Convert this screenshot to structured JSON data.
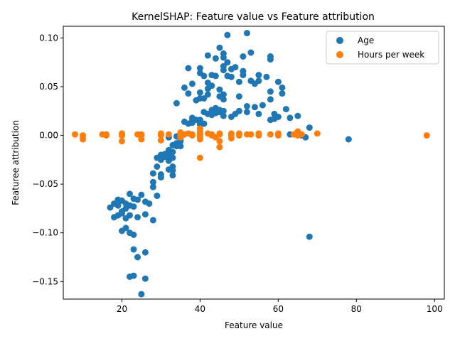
{
  "chart_data": {
    "type": "scatter",
    "title": "KernelSHAP: Feature value vs Feature attribution",
    "xlabel": "Feature value",
    "ylabel": "Featuree attribution",
    "xlim": [
      5,
      102.5
    ],
    "ylim": [
      -0.168,
      0.112
    ],
    "xticks": [
      20,
      40,
      60,
      80,
      100
    ],
    "yticks": [
      -0.15,
      -0.1,
      -0.05,
      0.0,
      0.05,
      0.1
    ],
    "ytick_labels": [
      "−0.15",
      "−0.10",
      "−0.05",
      "0.00",
      "0.05",
      "0.10"
    ],
    "grid": false,
    "legend_position": "top-right",
    "series": [
      {
        "name": "Age",
        "color": "#1f77b4",
        "points": [
          [
            17,
            -0.074
          ],
          [
            18,
            -0.07
          ],
          [
            18,
            -0.084
          ],
          [
            19,
            -0.072
          ],
          [
            19,
            -0.068
          ],
          [
            19,
            -0.082
          ],
          [
            19,
            -0.066
          ],
          [
            20,
            -0.078
          ],
          [
            20,
            -0.098
          ],
          [
            20,
            -0.067
          ],
          [
            20,
            -0.08
          ],
          [
            21,
            -0.075
          ],
          [
            21,
            -0.085
          ],
          [
            21,
            -0.095
          ],
          [
            21,
            -0.07
          ],
          [
            22,
            -0.06
          ],
          [
            22,
            -0.082
          ],
          [
            22,
            -0.1
          ],
          [
            22,
            -0.145
          ],
          [
            22,
            -0.072
          ],
          [
            23,
            -0.065
          ],
          [
            23,
            -0.102
          ],
          [
            23,
            -0.117
          ],
          [
            23,
            -0.144
          ],
          [
            23,
            -0.073
          ],
          [
            24,
            -0.125
          ],
          [
            24,
            -0.084
          ],
          [
            24,
            -0.066
          ],
          [
            25,
            -0.061
          ],
          [
            25,
            -0.163
          ],
          [
            26,
            -0.12
          ],
          [
            26,
            -0.081
          ],
          [
            26,
            -0.147
          ],
          [
            26,
            -0.068
          ],
          [
            27,
            -0.07
          ],
          [
            28,
            -0.087
          ],
          [
            28,
            -0.039
          ],
          [
            28,
            -0.048
          ],
          [
            28,
            -0.053
          ],
          [
            29,
            -0.032
          ],
          [
            29,
            -0.023
          ],
          [
            29,
            -0.062
          ],
          [
            30,
            -0.02
          ],
          [
            30,
            -0.025
          ],
          [
            30,
            -0.04
          ],
          [
            30,
            -0.043
          ],
          [
            31,
            -0.022
          ],
          [
            31,
            -0.019
          ],
          [
            32,
            -0.002
          ],
          [
            32,
            -0.015
          ],
          [
            32,
            -0.02
          ],
          [
            32,
            -0.035
          ],
          [
            32,
            -0.026
          ],
          [
            33,
            -0.01
          ],
          [
            33,
            -0.017
          ],
          [
            33,
            -0.023
          ],
          [
            33,
            -0.032
          ],
          [
            33,
            -0.036
          ],
          [
            33,
            -0.041
          ],
          [
            34,
            0.033
          ],
          [
            34,
            -0.001
          ],
          [
            34,
            -0.008
          ],
          [
            34,
            -0.011
          ],
          [
            35,
            -0.003
          ],
          [
            35,
            -0.006
          ],
          [
            35,
            -0.011
          ],
          [
            36,
            0.014
          ],
          [
            36,
            0.049
          ],
          [
            37,
            0.012
          ],
          [
            37,
            0.043
          ],
          [
            37,
            0.069
          ],
          [
            38,
            0.018
          ],
          [
            38,
            0.015
          ],
          [
            38,
            0.053
          ],
          [
            38,
            0.013
          ],
          [
            39,
            0.036
          ],
          [
            39,
            0.016
          ],
          [
            40,
            0.013
          ],
          [
            40,
            0.016
          ],
          [
            40,
            0.038
          ],
          [
            40,
            0.044
          ],
          [
            40,
            0.064
          ],
          [
            40,
            0.069
          ],
          [
            40,
            0.011
          ],
          [
            41,
            0.024
          ],
          [
            41,
            0.038
          ],
          [
            41,
            0.061
          ],
          [
            41,
            0.012
          ],
          [
            42,
            0.042
          ],
          [
            42,
            0.054
          ],
          [
            42,
            0.022
          ],
          [
            42,
            0.082
          ],
          [
            42,
            0.048
          ],
          [
            43,
            0.026
          ],
          [
            43,
            0.021
          ],
          [
            43,
            0.062
          ],
          [
            43,
            0.051
          ],
          [
            44,
            0.028
          ],
          [
            44,
            0.023
          ],
          [
            44,
            0.061
          ],
          [
            44,
            0.079
          ],
          [
            45,
            0.026
          ],
          [
            45,
            0.047
          ],
          [
            45,
            0.09
          ],
          [
            45,
            0.04
          ],
          [
            45,
            0.024
          ],
          [
            46,
            0.02
          ],
          [
            46,
            0.037
          ],
          [
            46,
            0.067
          ],
          [
            46,
            0.071
          ],
          [
            46,
            0.084
          ],
          [
            46,
            0.08
          ],
          [
            46,
            0.025
          ],
          [
            46,
            0.042
          ],
          [
            47,
            0.061
          ],
          [
            47,
            0.075
          ],
          [
            47,
            0.103
          ],
          [
            48,
            0.019
          ],
          [
            48,
            0.06
          ],
          [
            48,
            0.068
          ],
          [
            49,
            0.07
          ],
          [
            49,
            0.022
          ],
          [
            50,
            0.025
          ],
          [
            50,
            0.04
          ],
          [
            50,
            0.055
          ],
          [
            51,
            0.062
          ],
          [
            51,
            0.066
          ],
          [
            51,
            0.081
          ],
          [
            52,
            0.03
          ],
          [
            52,
            0.105
          ],
          [
            52,
            0.024
          ],
          [
            53,
            0.085
          ],
          [
            53,
            0.056
          ],
          [
            54,
            0.053
          ],
          [
            54,
            0.029
          ],
          [
            55,
            0.022
          ],
          [
            55,
            0.056
          ],
          [
            55,
            0.062
          ],
          [
            56,
            0.031
          ],
          [
            57,
            0.06
          ],
          [
            58,
            0.016
          ],
          [
            58,
            0.037
          ],
          [
            58,
            0.045
          ],
          [
            58,
            0.078
          ],
          [
            58,
            0.081
          ],
          [
            59,
            0.022
          ],
          [
            59,
            0.017
          ],
          [
            60,
            0.019
          ],
          [
            60,
            0.055
          ],
          [
            61,
            0.049
          ],
          [
            61,
            0.043
          ],
          [
            62,
            0.027
          ],
          [
            63,
            0.001
          ],
          [
            63,
            0.018
          ],
          [
            65,
            0.02
          ],
          [
            66,
            0.0
          ],
          [
            67,
            -0.002
          ],
          [
            68,
            0.008
          ],
          [
            68,
            -0.104
          ],
          [
            78,
            -0.004
          ]
        ]
      },
      {
        "name": "Hours per week",
        "color": "#ff7f0e",
        "points": [
          [
            8,
            0.001
          ],
          [
            10,
            -0.001
          ],
          [
            10,
            0.0
          ],
          [
            10,
            -0.004
          ],
          [
            15,
            0.001
          ],
          [
            16,
            0.001
          ],
          [
            16,
            0.0
          ],
          [
            20,
            0.0
          ],
          [
            20,
            -0.006
          ],
          [
            20,
            0.002
          ],
          [
            20,
            0.0
          ],
          [
            24,
            0.001
          ],
          [
            25,
            0.0
          ],
          [
            25,
            -0.004
          ],
          [
            25,
            0.001
          ],
          [
            30,
            0.001
          ],
          [
            30,
            0.0
          ],
          [
            30,
            -0.005
          ],
          [
            30,
            0.002
          ],
          [
            32,
            0.001
          ],
          [
            35,
            0.001
          ],
          [
            35,
            -0.002
          ],
          [
            35,
            0.003
          ],
          [
            35,
            0.0
          ],
          [
            36,
            0.001
          ],
          [
            37,
            0.002
          ],
          [
            38,
            0.0
          ],
          [
            38,
            0.001
          ],
          [
            40,
            0.0
          ],
          [
            40,
            -0.004
          ],
          [
            40,
            0.001
          ],
          [
            40,
            0.004
          ],
          [
            40,
            -0.002
          ],
          [
            40,
            -0.023
          ],
          [
            40,
            0.007
          ],
          [
            40,
            0.002
          ],
          [
            42,
            0.002
          ],
          [
            43,
            0.001
          ],
          [
            43,
            0.0
          ],
          [
            44,
            -0.002
          ],
          [
            45,
            0.001
          ],
          [
            45,
            -0.006
          ],
          [
            45,
            -0.012
          ],
          [
            45,
            0.002
          ],
          [
            48,
            0.0
          ],
          [
            48,
            -0.003
          ],
          [
            48,
            0.002
          ],
          [
            50,
            0.002
          ],
          [
            50,
            0.0
          ],
          [
            52,
            0.001
          ],
          [
            53,
            0.001
          ],
          [
            55,
            0.0
          ],
          [
            55,
            0.002
          ],
          [
            58,
            0.001
          ],
          [
            60,
            0.001
          ],
          [
            60,
            0.0
          ],
          [
            60,
            0.002
          ],
          [
            64,
            0.001
          ],
          [
            65,
            0.002
          ],
          [
            65,
            0.0
          ],
          [
            65,
            0.004
          ],
          [
            66,
            0.001
          ],
          [
            70,
            0.002
          ],
          [
            98,
            0.0
          ]
        ]
      }
    ]
  }
}
